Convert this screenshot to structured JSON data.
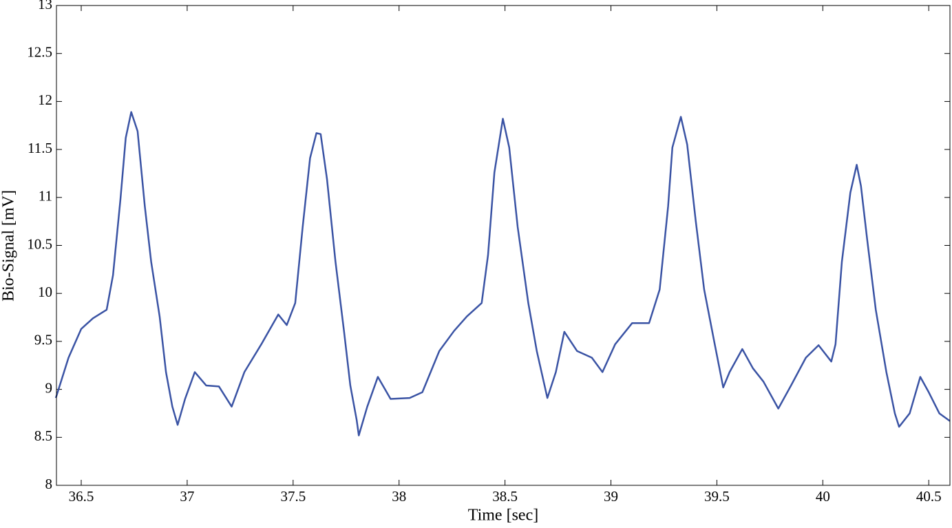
{
  "chart_data": {
    "type": "line",
    "xlabel": "Time [sec]",
    "ylabel": "Bio-Signal [mV]",
    "xlim": [
      36.383,
      40.6
    ],
    "ylim": [
      8,
      13
    ],
    "xticks": [
      36.5,
      37,
      37.5,
      38,
      38.5,
      39,
      39.5,
      40,
      40.5
    ],
    "yticks": [
      8,
      8.5,
      9,
      9.5,
      10,
      10.5,
      11,
      11.5,
      12,
      12.5,
      13
    ],
    "grid": false,
    "series": [
      {
        "color": "#3a53a4",
        "x": [
          36.38,
          36.44,
          36.5,
          36.555,
          36.62,
          36.65,
          36.685,
          36.71,
          36.736,
          36.766,
          36.8,
          36.83,
          36.87,
          36.9,
          36.93,
          36.955,
          36.99,
          37.036,
          37.09,
          37.15,
          37.21,
          37.27,
          37.35,
          37.43,
          37.47,
          37.51,
          37.545,
          37.58,
          37.61,
          37.63,
          37.66,
          37.7,
          37.74,
          37.77,
          37.8,
          37.81,
          37.85,
          37.9,
          37.96,
          38.05,
          38.11,
          38.19,
          38.26,
          38.32,
          38.39,
          38.42,
          38.45,
          38.49,
          38.52,
          38.56,
          38.61,
          38.65,
          38.7,
          38.74,
          38.78,
          38.84,
          38.91,
          38.96,
          39.02,
          39.1,
          39.18,
          39.23,
          39.27,
          39.29,
          39.33,
          39.36,
          39.4,
          39.44,
          39.49,
          39.53,
          39.56,
          39.62,
          39.67,
          39.72,
          39.79,
          39.85,
          39.92,
          39.98,
          40.04,
          40.06,
          40.09,
          40.13,
          40.16,
          40.18,
          40.21,
          40.25,
          40.3,
          40.34,
          40.36,
          40.41,
          40.46,
          40.5,
          40.55,
          40.6
        ],
        "values": [
          8.91,
          9.33,
          9.63,
          9.74,
          9.83,
          10.19,
          10.98,
          11.62,
          11.89,
          11.69,
          10.91,
          10.33,
          9.76,
          9.18,
          8.82,
          8.63,
          8.9,
          9.18,
          9.04,
          9.03,
          8.82,
          9.18,
          9.47,
          9.78,
          9.67,
          9.9,
          10.69,
          11.41,
          11.67,
          11.66,
          11.19,
          10.33,
          9.61,
          9.04,
          8.68,
          8.52,
          8.82,
          9.13,
          8.9,
          8.91,
          8.97,
          9.4,
          9.61,
          9.76,
          9.9,
          10.4,
          11.26,
          11.82,
          11.52,
          10.69,
          9.9,
          9.4,
          8.91,
          9.18,
          9.6,
          9.4,
          9.33,
          9.18,
          9.47,
          9.69,
          9.69,
          10.04,
          10.91,
          11.52,
          11.84,
          11.55,
          10.76,
          10.04,
          9.47,
          9.02,
          9.18,
          9.42,
          9.22,
          9.08,
          8.8,
          9.04,
          9.33,
          9.46,
          9.29,
          9.47,
          10.33,
          11.05,
          11.34,
          11.12,
          10.55,
          9.83,
          9.18,
          8.75,
          8.61,
          8.75,
          9.13,
          8.97,
          8.75,
          8.67
        ]
      }
    ]
  }
}
